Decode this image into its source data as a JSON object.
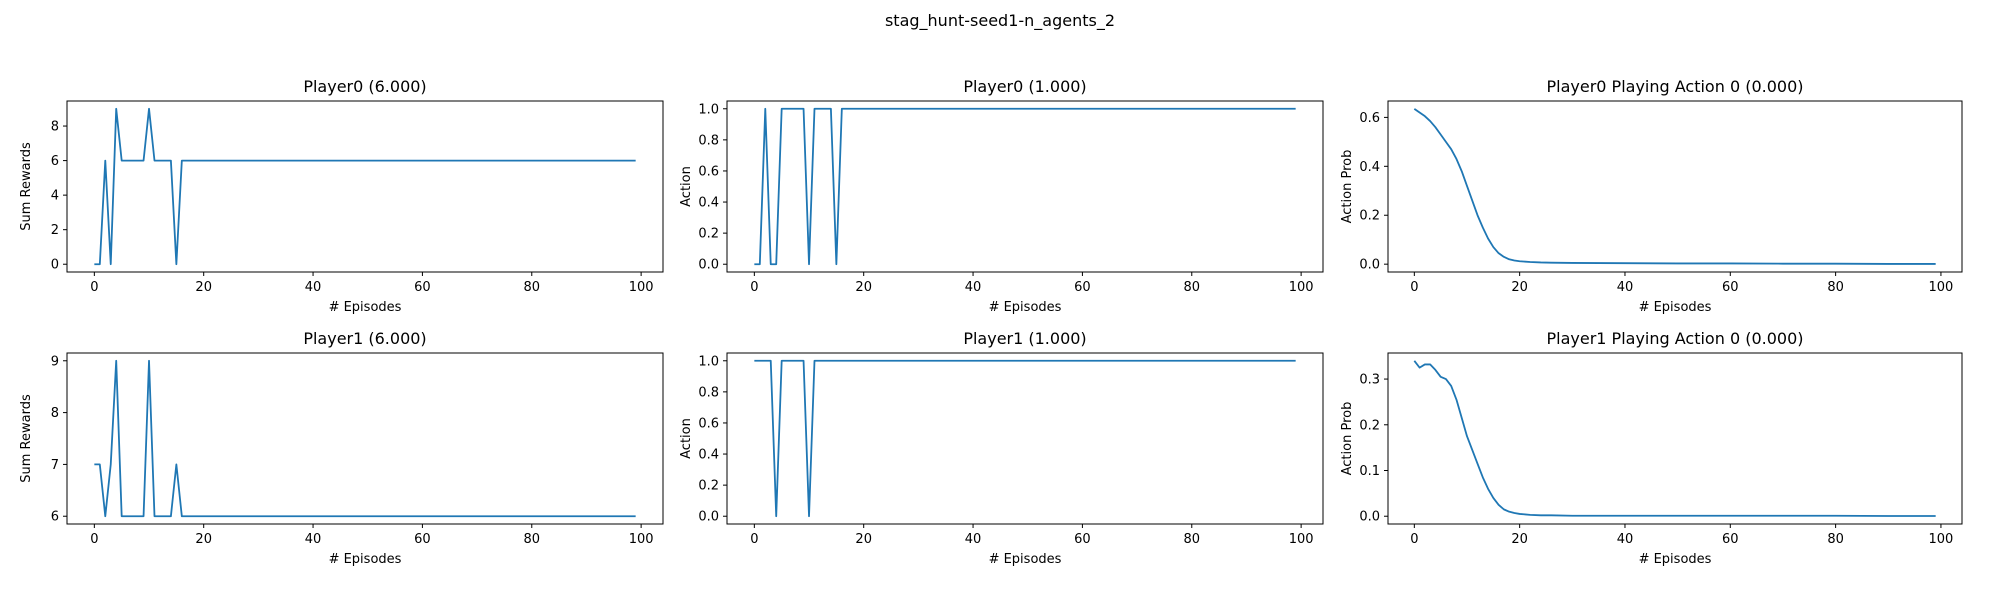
{
  "figure": {
    "suptitle": "stag_hunt-seed1-n_agents_2",
    "line_color": "#1f77b4"
  },
  "chart_data": [
    {
      "type": "line",
      "title": "Player0 (6.000)",
      "xlabel": "# Episodes",
      "ylabel": "Sum Rewards",
      "xlim": [
        -5,
        104
      ],
      "ylim": [
        -0.45,
        9.45
      ],
      "xticks": [
        0,
        20,
        40,
        60,
        80,
        100
      ],
      "yticks": [
        0,
        2,
        4,
        6,
        8
      ],
      "ytick_labels": [
        "0",
        "2",
        "4",
        "6",
        "8"
      ],
      "grid": false,
      "series": [
        {
          "x": [
            0,
            1,
            2,
            3,
            4,
            5,
            6,
            7,
            8,
            9,
            10,
            11,
            12,
            13,
            14,
            15,
            16,
            17,
            99
          ],
          "y": [
            0,
            0,
            6,
            0,
            9,
            6,
            6,
            6,
            6,
            6,
            9,
            6,
            6,
            6,
            6,
            0,
            6,
            6,
            6
          ]
        }
      ]
    },
    {
      "type": "line",
      "title": "Player0 (1.000)",
      "xlabel": "# Episodes",
      "ylabel": "Action",
      "xlim": [
        -5,
        104
      ],
      "ylim": [
        -0.05,
        1.05
      ],
      "xticks": [
        0,
        20,
        40,
        60,
        80,
        100
      ],
      "yticks": [
        0,
        0.2,
        0.4,
        0.6,
        0.8,
        1.0
      ],
      "ytick_labels": [
        "0.0",
        "0.2",
        "0.4",
        "0.6",
        "0.8",
        "1.0"
      ],
      "grid": false,
      "series": [
        {
          "x": [
            0,
            1,
            2,
            3,
            4,
            5,
            6,
            7,
            8,
            9,
            10,
            11,
            12,
            13,
            14,
            15,
            16,
            17,
            99
          ],
          "y": [
            0,
            0,
            1,
            0,
            0,
            1,
            1,
            1,
            1,
            1,
            0,
            1,
            1,
            1,
            1,
            0,
            1,
            1,
            1
          ]
        }
      ]
    },
    {
      "type": "line",
      "title": "Player0 Playing Action 0 (0.000)",
      "xlabel": "# Episodes",
      "ylabel": "Action Prob",
      "xlim": [
        -5,
        104
      ],
      "ylim": [
        -0.032,
        0.667
      ],
      "xticks": [
        0,
        20,
        40,
        60,
        80,
        100
      ],
      "yticks": [
        0,
        0.2,
        0.4,
        0.6
      ],
      "ytick_labels": [
        "0.0",
        "0.2",
        "0.4",
        "0.6"
      ],
      "grid": false,
      "series": [
        {
          "x": [
            0,
            1,
            2,
            3,
            4,
            5,
            6,
            7,
            8,
            9,
            10,
            11,
            12,
            13,
            14,
            15,
            16,
            17,
            18,
            19,
            20,
            22,
            24,
            26,
            30,
            40,
            50,
            60,
            70,
            80,
            90,
            99
          ],
          "y": [
            0.635,
            0.62,
            0.605,
            0.585,
            0.56,
            0.53,
            0.5,
            0.47,
            0.43,
            0.38,
            0.32,
            0.26,
            0.2,
            0.15,
            0.105,
            0.07,
            0.045,
            0.03,
            0.02,
            0.015,
            0.012,
            0.009,
            0.007,
            0.006,
            0.005,
            0.004,
            0.003,
            0.003,
            0.002,
            0.002,
            0.001,
            0.001
          ]
        }
      ]
    },
    {
      "type": "line",
      "title": "Player1 (6.000)",
      "xlabel": "# Episodes",
      "ylabel": "Sum Rewards",
      "xlim": [
        -5,
        104
      ],
      "ylim": [
        5.85,
        9.15
      ],
      "xticks": [
        0,
        20,
        40,
        60,
        80,
        100
      ],
      "yticks": [
        6,
        7,
        8,
        9
      ],
      "ytick_labels": [
        "6",
        "7",
        "8",
        "9"
      ],
      "grid": false,
      "series": [
        {
          "x": [
            0,
            1,
            2,
            3,
            4,
            5,
            6,
            7,
            8,
            9,
            10,
            11,
            12,
            13,
            14,
            15,
            16,
            17,
            99
          ],
          "y": [
            7,
            7,
            6,
            7,
            9,
            6,
            6,
            6,
            6,
            6,
            9,
            6,
            6,
            6,
            6,
            7,
            6,
            6,
            6
          ]
        }
      ]
    },
    {
      "type": "line",
      "title": "Player1 (1.000)",
      "xlabel": "# Episodes",
      "ylabel": "Action",
      "xlim": [
        -5,
        104
      ],
      "ylim": [
        -0.05,
        1.05
      ],
      "xticks": [
        0,
        20,
        40,
        60,
        80,
        100
      ],
      "yticks": [
        0,
        0.2,
        0.4,
        0.6,
        0.8,
        1.0
      ],
      "ytick_labels": [
        "0.0",
        "0.2",
        "0.4",
        "0.6",
        "0.8",
        "1.0"
      ],
      "grid": false,
      "series": [
        {
          "x": [
            0,
            1,
            2,
            3,
            4,
            5,
            6,
            7,
            8,
            9,
            10,
            11,
            12,
            99
          ],
          "y": [
            1,
            1,
            1,
            1,
            0,
            1,
            1,
            1,
            1,
            1,
            0,
            1,
            1,
            1
          ]
        }
      ]
    },
    {
      "type": "line",
      "title": "Player1 Playing Action 0 (0.000)",
      "xlabel": "# Episodes",
      "ylabel": "Action Prob",
      "xlim": [
        -5,
        104
      ],
      "ylim": [
        -0.017,
        0.357
      ],
      "xticks": [
        0,
        20,
        40,
        60,
        80,
        100
      ],
      "yticks": [
        0,
        0.1,
        0.2,
        0.3
      ],
      "ytick_labels": [
        "0.0",
        "0.1",
        "0.2",
        "0.3"
      ],
      "grid": false,
      "series": [
        {
          "x": [
            0,
            1,
            2,
            3,
            4,
            5,
            6,
            7,
            8,
            9,
            10,
            11,
            12,
            13,
            14,
            15,
            16,
            17,
            18,
            19,
            20,
            22,
            24,
            26,
            30,
            40,
            50,
            60,
            70,
            80,
            90,
            99
          ],
          "y": [
            0.34,
            0.325,
            0.332,
            0.332,
            0.32,
            0.305,
            0.3,
            0.285,
            0.255,
            0.215,
            0.175,
            0.145,
            0.115,
            0.085,
            0.06,
            0.04,
            0.025,
            0.015,
            0.01,
            0.007,
            0.005,
            0.003,
            0.002,
            0.002,
            0.001,
            0.001,
            0.001,
            0.001,
            0.001,
            0.001,
            0.0005,
            0.0005
          ]
        }
      ]
    }
  ]
}
